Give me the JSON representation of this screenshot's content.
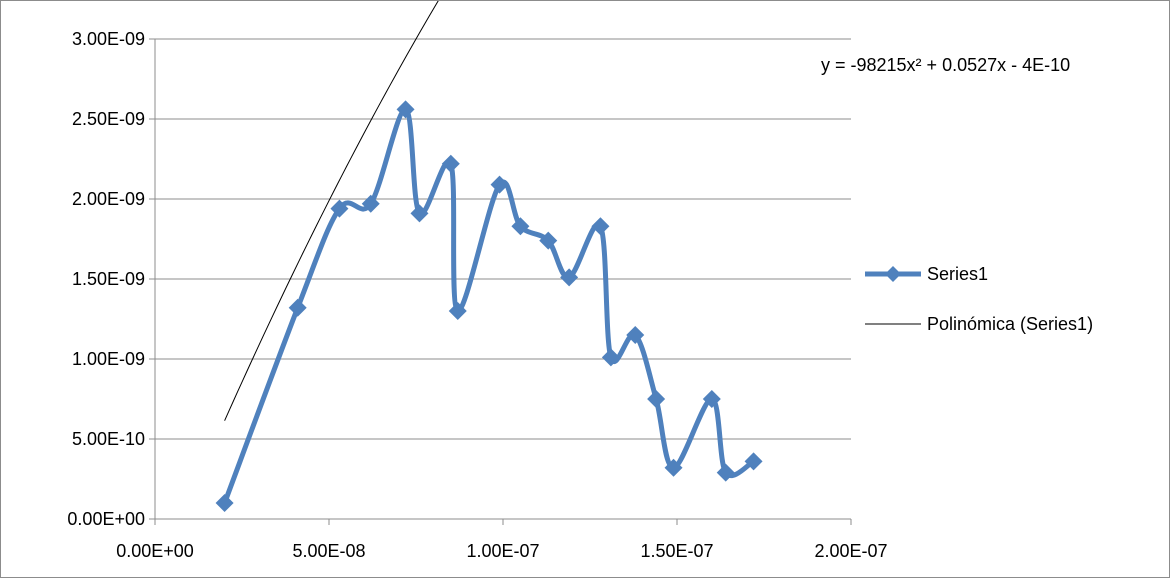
{
  "chart_data": {
    "type": "scatter",
    "title": "",
    "xlabel": "",
    "ylabel": "",
    "xlim": [
      0,
      2e-07
    ],
    "ylim": [
      0,
      3e-09
    ],
    "grid": "horizontal",
    "legend_position": "right",
    "x_tick_labels": [
      "0.00E+00",
      "5.00E-08",
      "1.00E-07",
      "1.50E-07",
      "2.00E-07"
    ],
    "x_ticks": [
      0,
      5e-08,
      1e-07,
      1.5e-07,
      2e-07
    ],
    "y_tick_labels": [
      "0.00E+00",
      "5.00E-10",
      "1.00E-09",
      "1.50E-09",
      "2.00E-09",
      "2.50E-09",
      "3.00E-09"
    ],
    "y_ticks": [
      0,
      5e-10,
      1e-09,
      1.5e-09,
      2e-09,
      2.5e-09,
      3e-09
    ],
    "series": [
      {
        "name": "Series1",
        "color": "#4f81bd",
        "marker": "diamond",
        "smooth": true,
        "points": [
          [
            2e-08,
            1e-10
          ],
          [
            4.1e-08,
            1.32e-09
          ],
          [
            5.3e-08,
            1.94e-09
          ],
          [
            6.2e-08,
            1.97e-09
          ],
          [
            7.2e-08,
            2.56e-09
          ],
          [
            7.6e-08,
            1.91e-09
          ],
          [
            8.5e-08,
            2.22e-09
          ],
          [
            8.7e-08,
            1.3e-09
          ],
          [
            9.9e-08,
            2.09e-09
          ],
          [
            1.05e-07,
            1.83e-09
          ],
          [
            1.13e-07,
            1.74e-09
          ],
          [
            1.19e-07,
            1.51e-09
          ],
          [
            1.28e-07,
            1.83e-09
          ],
          [
            1.31e-07,
            1.01e-09
          ],
          [
            1.38e-07,
            1.15e-09
          ],
          [
            1.44e-07,
            7.5e-10
          ],
          [
            1.49e-07,
            3.2e-10
          ],
          [
            1.6e-07,
            7.5e-10
          ],
          [
            1.64e-07,
            2.9e-10
          ],
          [
            1.72e-07,
            3.6e-10
          ]
        ]
      }
    ],
    "trendline": {
      "name": "Polinómica (Series1)",
      "color": "#000000",
      "type": "polynomial",
      "coefficients": {
        "a": -98215,
        "b": 0.0527,
        "c": -4e-10
      },
      "x_range": [
        2e-08,
        1.7e-07
      ],
      "equation_label": "y = -98215x² + 0.0527x - 4E-10"
    }
  }
}
